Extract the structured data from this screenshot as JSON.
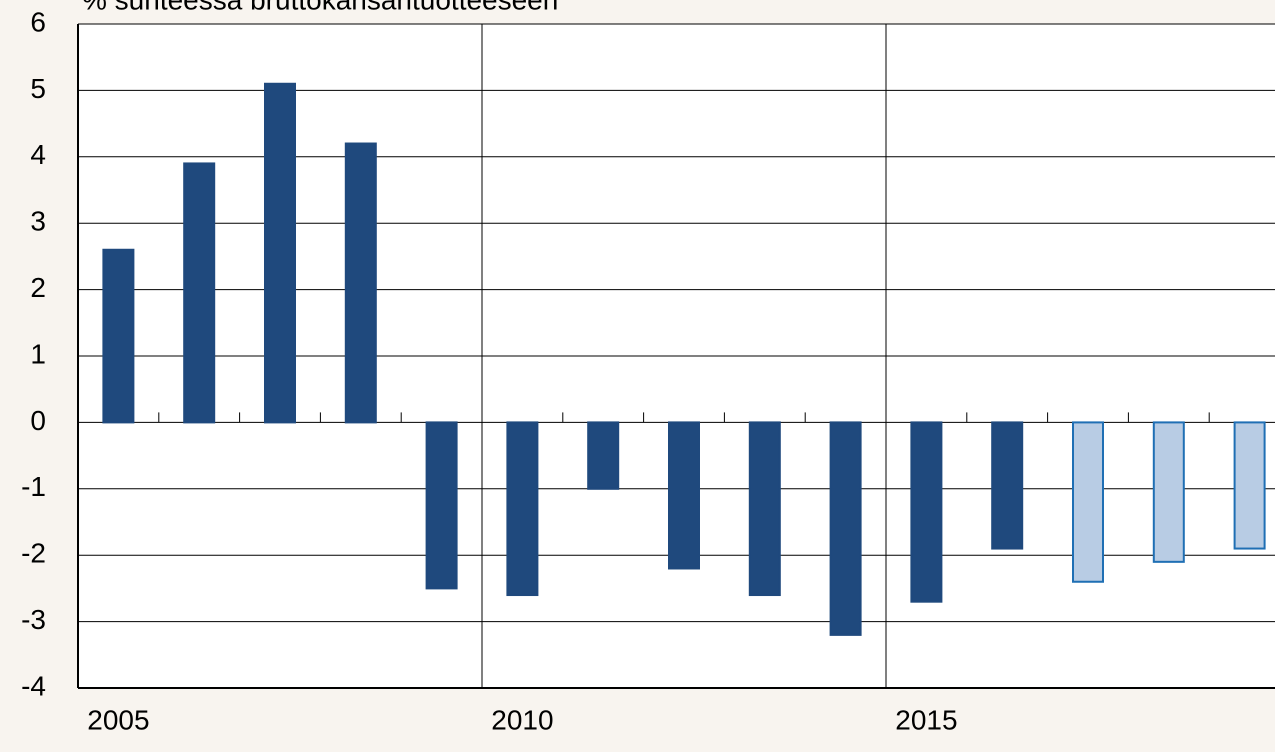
{
  "chart_data": {
    "type": "bar",
    "title": "% suhteessa bruttokansantuotteeseen",
    "categories": [
      "2005",
      null,
      null,
      null,
      null,
      "2010",
      null,
      null,
      null,
      null,
      "2015",
      null,
      null,
      null,
      null
    ],
    "values": [
      2.6,
      3.9,
      5.1,
      4.2,
      -2.5,
      -2.6,
      -1.0,
      -2.2,
      -2.6,
      -3.2,
      -2.7,
      -1.9,
      -2.4,
      -2.1,
      -1.9
    ],
    "colors": [
      "#1f497d",
      "#1f497d",
      "#1f497d",
      "#1f497d",
      "#1f497d",
      "#1f497d",
      "#1f497d",
      "#1f497d",
      "#1f497d",
      "#1f497d",
      "#1f497d",
      "#1f497d",
      "#b8cce4",
      "#b8cce4",
      "#b8cce4"
    ],
    "edgecolors": [
      "#1f497d",
      "#1f497d",
      "#1f497d",
      "#1f497d",
      "#1f497d",
      "#1f497d",
      "#1f497d",
      "#1f497d",
      "#1f497d",
      "#1f497d",
      "#1f497d",
      "#1f497d",
      "#1f6fb4",
      "#1f6fb4",
      "#1f6fb4"
    ],
    "ylim": [
      -4,
      6
    ],
    "yticks": [
      -4,
      -3,
      -2,
      -1,
      0,
      1,
      2,
      3,
      4,
      5,
      6
    ],
    "grid": true
  }
}
